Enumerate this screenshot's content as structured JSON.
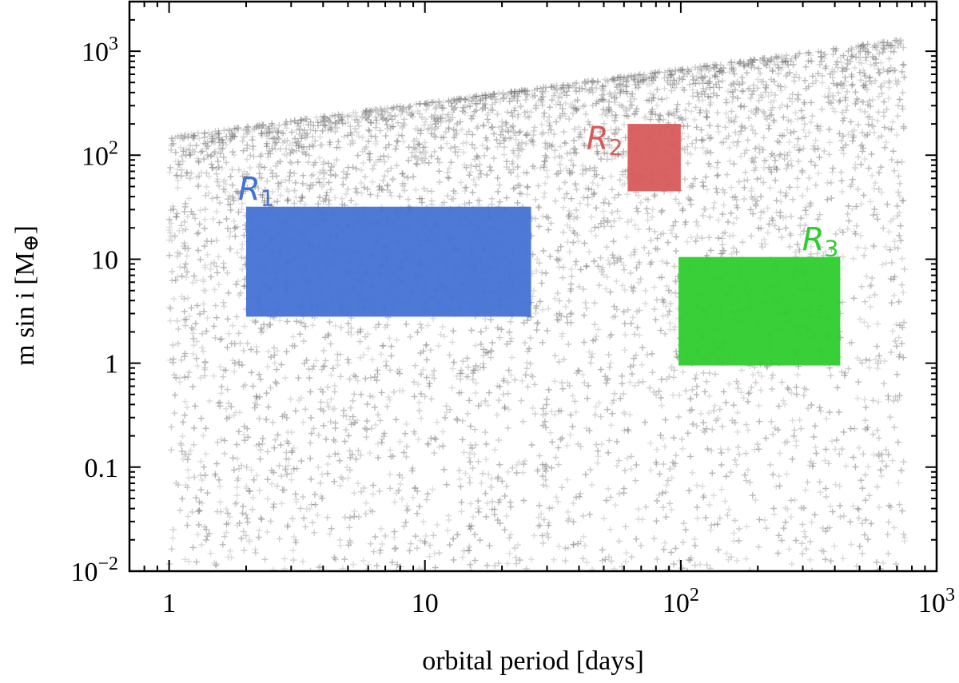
{
  "chart_data": {
    "type": "scatter",
    "xlabel": "orbital period [days]",
    "ylabel_main": "m sin i [M",
    "ylabel_symbol": "⊕",
    "ylabel_close": "]",
    "xscale": "log",
    "yscale": "log",
    "xlim": [
      0.7,
      1000
    ],
    "ylim": [
      0.01,
      3000
    ],
    "x_ticks": [
      {
        "value": 1,
        "label": "1"
      },
      {
        "value": 10,
        "label": "10"
      },
      {
        "value": 100,
        "label": "10",
        "exp": "2"
      },
      {
        "value": 1000,
        "label": "10",
        "exp": "3"
      }
    ],
    "y_ticks": [
      {
        "value": 0.01,
        "label": "10",
        "exp": "−2"
      },
      {
        "value": 0.1,
        "label": "0.1"
      },
      {
        "value": 1,
        "label": "1"
      },
      {
        "value": 10,
        "label": "10"
      },
      {
        "value": 100,
        "label": "10",
        "exp": "2"
      },
      {
        "value": 1000,
        "label": "10",
        "exp": "3"
      }
    ],
    "scatter_cloud": {
      "x_range": [
        1,
        750
      ],
      "upper_mass_at_x_min": 150,
      "upper_mass_at_x_max": 1300,
      "y_min": 0.01,
      "color": "#000000",
      "marker": "plus"
    },
    "regions": [
      {
        "name": "R",
        "sub": "1",
        "x": [
          2,
          26
        ],
        "y": [
          2.8,
          32
        ],
        "color": "#4472d4"
      },
      {
        "name": "R",
        "sub": "2",
        "x": [
          62,
          100
        ],
        "y": [
          45,
          200
        ],
        "color": "#d75a5a"
      },
      {
        "name": "R",
        "sub": "3",
        "x": [
          98,
          420
        ],
        "y": [
          0.95,
          10.5
        ],
        "color": "#2ecc2e"
      }
    ],
    "grid": false,
    "legend": "none"
  }
}
